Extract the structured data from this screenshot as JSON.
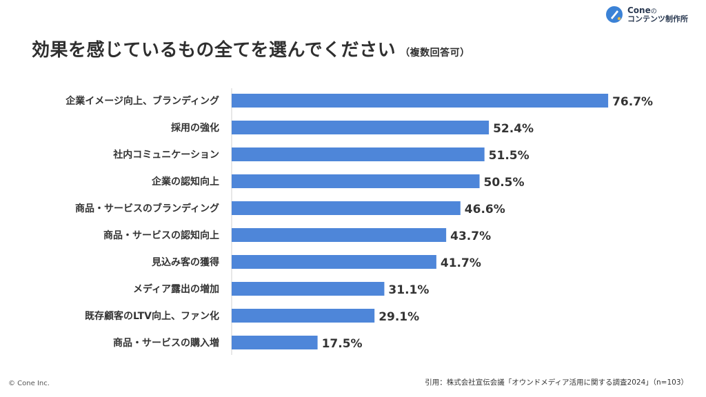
{
  "brand": {
    "name": "Cone",
    "name_suffix": "の",
    "sub": "コンテンツ制作所",
    "mark_color": "#3b82d6"
  },
  "title": "効果を感じているもの全てを選んでください",
  "title_note": "（複数回答可）",
  "footer": {
    "copyright": "© Cone Inc.",
    "citation": "引用：株式会社宣伝会議「オウンドメディア活用に関する調査2024」（n=103）"
  },
  "colors": {
    "bar": "#4e86d9",
    "axis": "#d0d0d0"
  },
  "chart_data": {
    "type": "bar",
    "orientation": "horizontal",
    "categories": [
      "企業イメージ向上、ブランディング",
      "採用の強化",
      "社内コミュニケーション",
      "企業の認知向上",
      "商品・サービスのブランディング",
      "商品・サービスの認知向上",
      "見込み客の獲得",
      "メディア露出の増加",
      "既存顧客のLTV向上、ファン化",
      "商品・サービスの購入増"
    ],
    "values": [
      76.7,
      52.4,
      51.5,
      50.5,
      46.6,
      43.7,
      41.7,
      31.1,
      29.1,
      17.5
    ],
    "value_labels": [
      "76.7%",
      "52.4%",
      "51.5%",
      "50.5%",
      "46.6%",
      "43.7%",
      "41.7%",
      "31.1%",
      "29.1%",
      "17.5%"
    ],
    "xlim": [
      0,
      100
    ],
    "grid": false,
    "legend": "none"
  }
}
